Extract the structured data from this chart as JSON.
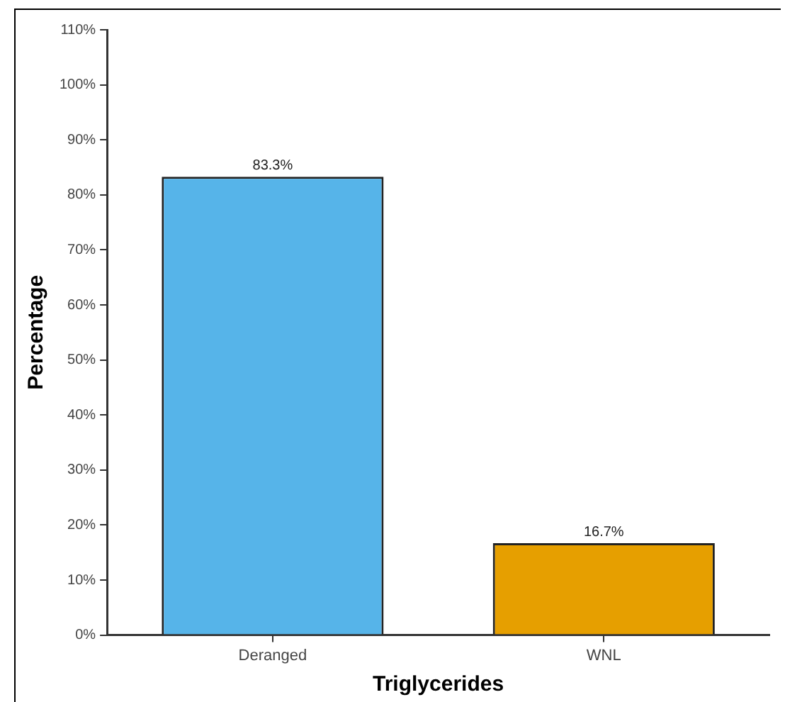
{
  "chart_data": {
    "type": "bar",
    "xlabel": "Triglycerides",
    "ylabel": "Percentage",
    "categories": [
      "Deranged",
      "WNL"
    ],
    "values": [
      83.3,
      16.7
    ],
    "colors": [
      "#56b4e9",
      "#e69f00"
    ],
    "value_labels": [
      "83.3%",
      "16.7%"
    ],
    "ylim": [
      0,
      110
    ],
    "yticks": [
      {
        "value": 0,
        "label": "0%"
      },
      {
        "value": 10,
        "label": "10%"
      },
      {
        "value": 20,
        "label": "20%"
      },
      {
        "value": 30,
        "label": "30%"
      },
      {
        "value": 40,
        "label": "40%"
      },
      {
        "value": 50,
        "label": "50%"
      },
      {
        "value": 60,
        "label": "60%"
      },
      {
        "value": 70,
        "label": "70%"
      },
      {
        "value": 80,
        "label": "80%"
      },
      {
        "value": 90,
        "label": "90%"
      },
      {
        "value": 100,
        "label": "100%"
      },
      {
        "value": 110,
        "label": "110%"
      }
    ],
    "grid": false,
    "legend": false
  }
}
